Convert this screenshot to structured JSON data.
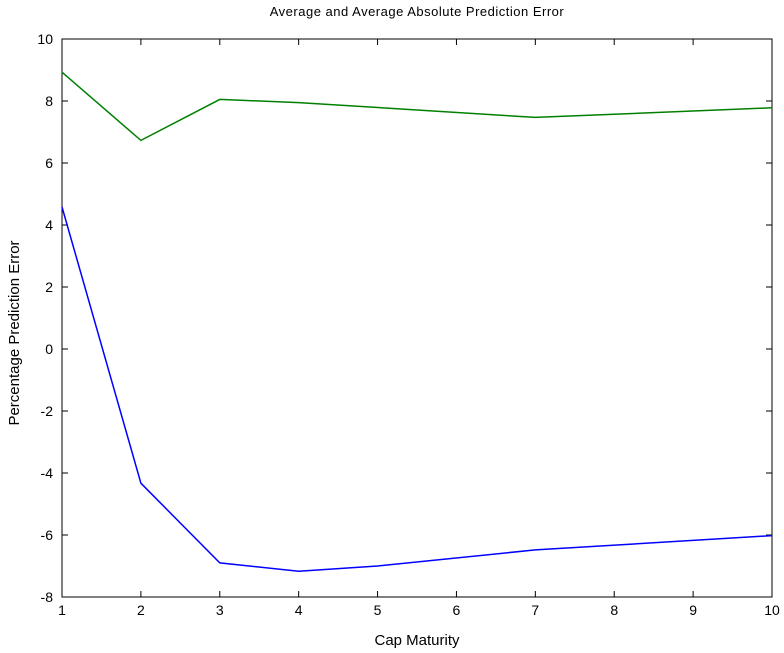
{
  "chart_data": {
    "type": "line",
    "title": "Average and Average Absolute Prediction Error",
    "xlabel": "Cap Maturity",
    "ylabel": "Percentage Prediction Error",
    "xlim": [
      1,
      10
    ],
    "ylim": [
      -8,
      10
    ],
    "xticks": [
      1,
      2,
      3,
      4,
      5,
      6,
      7,
      8,
      9,
      10
    ],
    "yticks": [
      -8,
      -6,
      -4,
      -2,
      0,
      2,
      4,
      6,
      8,
      10
    ],
    "grid": false,
    "series": [
      {
        "color": "#008000",
        "points": [
          [
            1,
            8.93
          ],
          [
            2,
            6.73
          ],
          [
            3,
            8.05
          ],
          [
            4,
            7.95
          ],
          [
            7,
            7.47
          ],
          [
            10,
            7.78
          ]
        ]
      },
      {
        "color": "#0000ff",
        "points": [
          [
            1,
            4.58
          ],
          [
            2,
            -4.33
          ],
          [
            3,
            -6.9
          ],
          [
            4,
            -7.17
          ],
          [
            5,
            -7.0
          ],
          [
            7,
            -6.48
          ],
          [
            10,
            -6.02
          ]
        ]
      }
    ]
  }
}
